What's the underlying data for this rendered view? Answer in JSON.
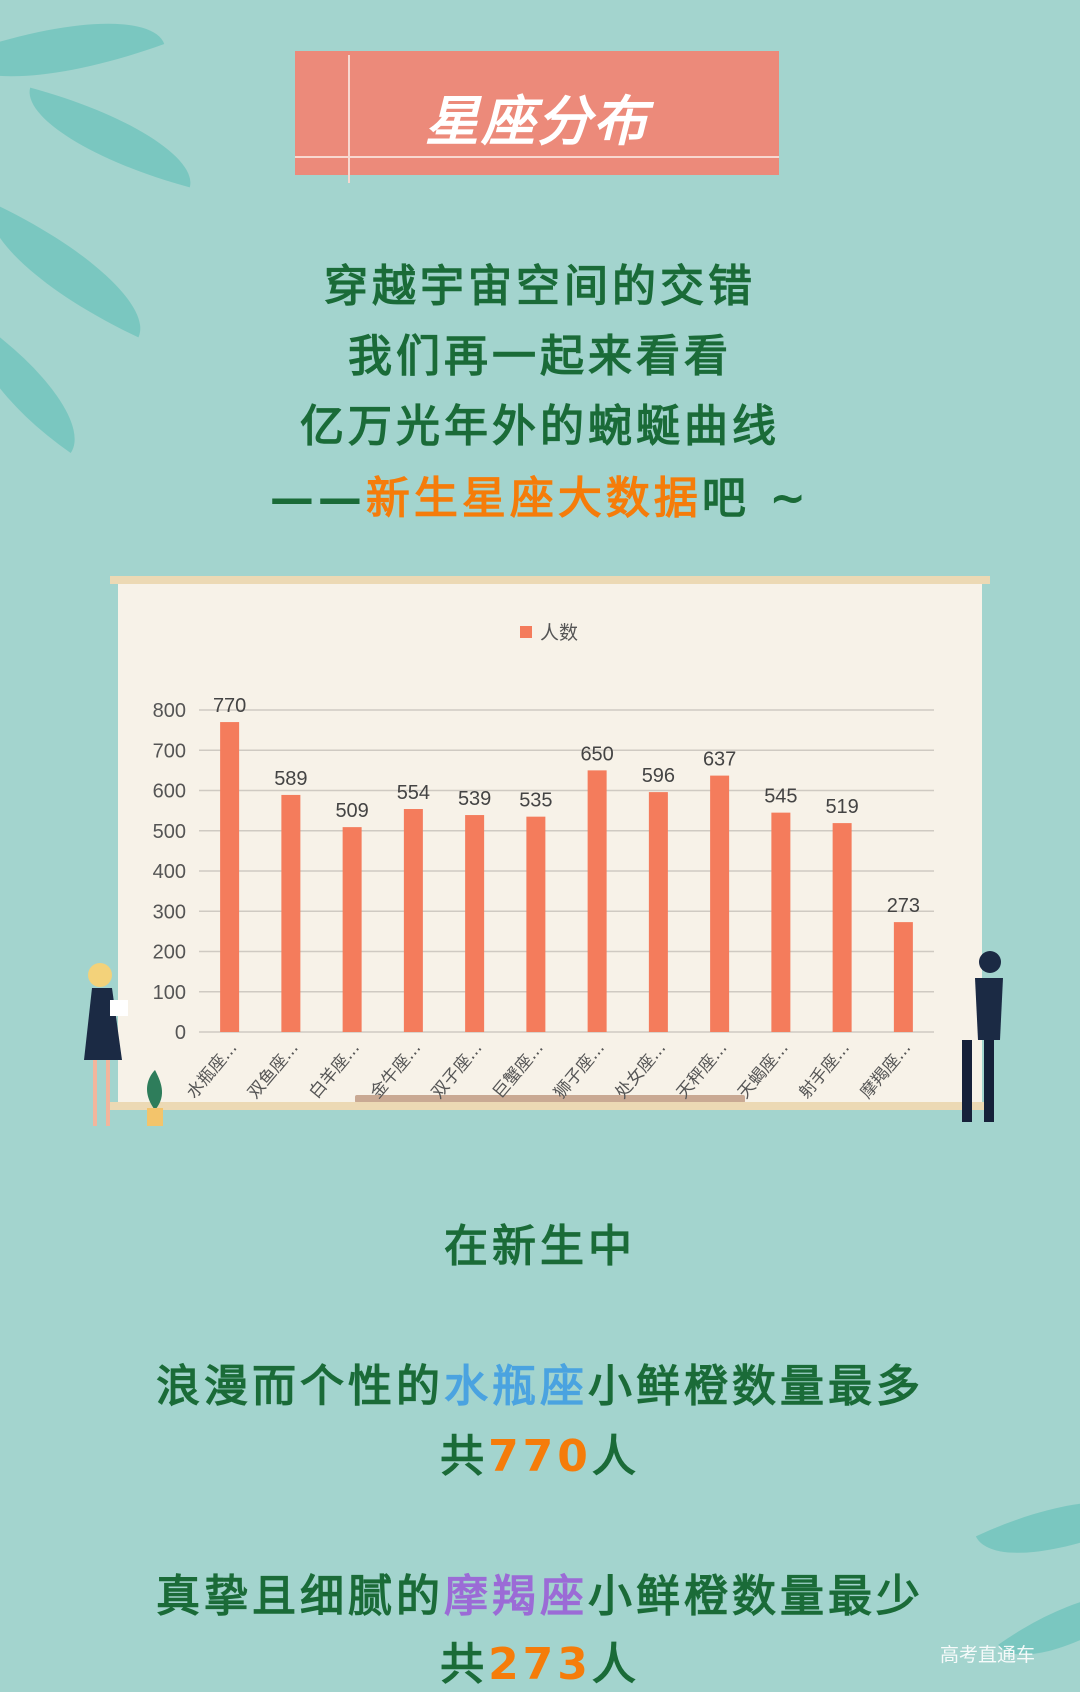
{
  "title": "星座分布",
  "intro": {
    "line1": "穿越宇宙空间的交错",
    "line2": "我们再一起来看看",
    "line3": "亿万光年外的蜿蜒曲线",
    "line4_prefix": "——",
    "line4_highlight": "新生星座大数据",
    "line4_suffix": "吧 ~"
  },
  "chart_data": {
    "type": "bar",
    "legend": "人数",
    "legend_position": "top",
    "categories": [
      "水瓶座...",
      "双鱼座...",
      "白羊座...",
      "金牛座...",
      "双子座...",
      "巨蟹座...",
      "狮子座...",
      "处女座...",
      "天秤座...",
      "天蝎座...",
      "射手座...",
      "摩羯座..."
    ],
    "series": [
      {
        "name": "人数",
        "values": [
          770,
          589,
          509,
          554,
          539,
          535,
          650,
          596,
          637,
          545,
          519,
          273
        ]
      }
    ],
    "ylim": [
      0,
      800
    ],
    "yticks": [
      0,
      100,
      200,
      300,
      400,
      500,
      600,
      700,
      800
    ],
    "grid": true,
    "bar_color": "#f47c5c"
  },
  "summary": {
    "heading": "在新生中",
    "max_prefix": "浪漫而个性的",
    "max_sign": "水瓶座",
    "max_suffix": "小鲜橙数量最多",
    "max_count_prefix": "共",
    "max_count": "770",
    "max_count_suffix": "人",
    "min_prefix": "真挚且细腻的",
    "min_sign": "摩羯座",
    "min_suffix": "小鲜橙数量最少",
    "min_count_prefix": "共",
    "min_count": "273",
    "min_count_suffix": "人"
  },
  "watermark": "高考直通车",
  "colors": {
    "background": "#a3d4ce",
    "title_box": "#ec8a7a",
    "text_green": "#1a6b38",
    "highlight_orange": "#f57c0a",
    "highlight_blue": "#4aa3e0",
    "highlight_purple": "#9b6bd6"
  }
}
